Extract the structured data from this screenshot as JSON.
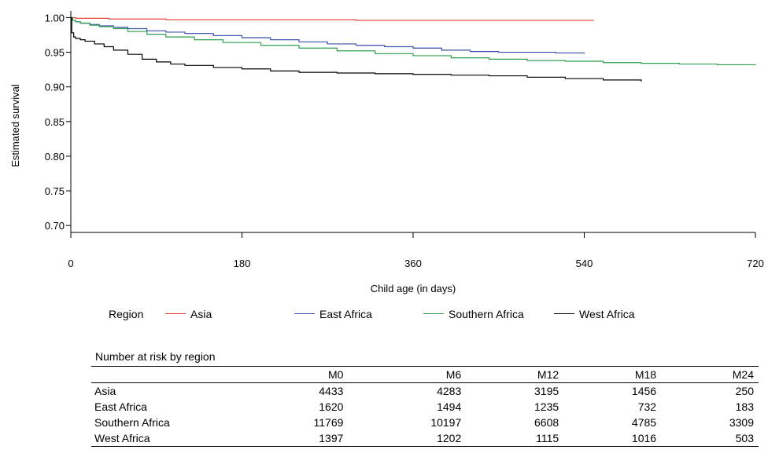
{
  "chart_data": {
    "type": "line",
    "xlabel": "Child age (in days)",
    "ylabel": "Estimated survival",
    "xlim": [
      0,
      720
    ],
    "ylim": [
      0.69,
      1.005
    ],
    "xticks": [
      0,
      180,
      360,
      540,
      720
    ],
    "xtick_labels": [
      "0",
      "180",
      "360",
      "540",
      "720"
    ],
    "yticks": [
      0.7,
      0.75,
      0.8,
      0.85,
      0.9,
      0.95,
      1.0
    ],
    "ytick_labels": [
      "0.70",
      "0.75",
      "0.80",
      "0.85",
      "0.90",
      "0.95",
      "1.00"
    ],
    "step": true,
    "grid": false,
    "series": [
      {
        "name": "Asia",
        "color": "#e8392e",
        "x": [
          0,
          5,
          20,
          40,
          60,
          100,
          150,
          200,
          300,
          400,
          500,
          550
        ],
        "y": [
          1.0,
          0.999,
          0.999,
          0.998,
          0.998,
          0.997,
          0.997,
          0.997,
          0.996,
          0.996,
          0.996,
          0.996
        ]
      },
      {
        "name": "East Africa",
        "color": "#3b4fae",
        "x": [
          0,
          2,
          5,
          10,
          20,
          30,
          45,
          60,
          80,
          100,
          120,
          150,
          180,
          210,
          240,
          270,
          300,
          330,
          360,
          390,
          420,
          450,
          480,
          510,
          540
        ],
        "y": [
          1.0,
          0.996,
          0.994,
          0.992,
          0.99,
          0.988,
          0.986,
          0.984,
          0.981,
          0.979,
          0.977,
          0.974,
          0.971,
          0.968,
          0.965,
          0.962,
          0.96,
          0.958,
          0.956,
          0.953,
          0.951,
          0.95,
          0.95,
          0.949,
          0.948
        ]
      },
      {
        "name": "Southern Africa",
        "color": "#2e9e4e",
        "x": [
          0,
          2,
          5,
          10,
          20,
          30,
          45,
          60,
          80,
          100,
          130,
          160,
          200,
          240,
          280,
          320,
          360,
          400,
          440,
          480,
          520,
          560,
          600,
          640,
          680,
          720
        ],
        "y": [
          1.0,
          0.996,
          0.994,
          0.992,
          0.989,
          0.987,
          0.984,
          0.98,
          0.976,
          0.972,
          0.968,
          0.964,
          0.96,
          0.956,
          0.952,
          0.948,
          0.945,
          0.942,
          0.94,
          0.938,
          0.937,
          0.935,
          0.934,
          0.933,
          0.932,
          0.931
        ]
      },
      {
        "name": "West Africa",
        "color": "#000000",
        "x": [
          0,
          1,
          3,
          5,
          10,
          15,
          25,
          35,
          45,
          60,
          75,
          90,
          105,
          120,
          150,
          180,
          210,
          240,
          280,
          320,
          360,
          400,
          440,
          480,
          520,
          560,
          600
        ],
        "y": [
          1.0,
          0.978,
          0.972,
          0.97,
          0.968,
          0.966,
          0.962,
          0.958,
          0.953,
          0.947,
          0.94,
          0.936,
          0.933,
          0.931,
          0.928,
          0.926,
          0.923,
          0.921,
          0.92,
          0.919,
          0.918,
          0.917,
          0.916,
          0.914,
          0.912,
          0.91,
          0.908
        ]
      }
    ]
  },
  "legend": {
    "title": "Region",
    "entries": [
      {
        "label": "Asia",
        "color": "#e8392e"
      },
      {
        "label": "East Africa",
        "color": "#3b4fae"
      },
      {
        "label": "Southern Africa",
        "color": "#2e9e4e"
      },
      {
        "label": "West Africa",
        "color": "#000000"
      }
    ]
  },
  "risk_table": {
    "title": "Number at risk by region",
    "columns": [
      "M0",
      "M6",
      "M12",
      "M18",
      "M24"
    ],
    "rows": [
      {
        "label": "Asia",
        "values": [
          "4433",
          "4283",
          "3195",
          "1456",
          "250"
        ]
      },
      {
        "label": "East Africa",
        "values": [
          "1620",
          "1494",
          "1235",
          "732",
          "183"
        ]
      },
      {
        "label": "Southern Africa",
        "values": [
          "11769",
          "10197",
          "6608",
          "4785",
          "3309"
        ]
      },
      {
        "label": "West Africa",
        "values": [
          "1397",
          "1202",
          "1115",
          "1016",
          "503"
        ]
      }
    ]
  }
}
